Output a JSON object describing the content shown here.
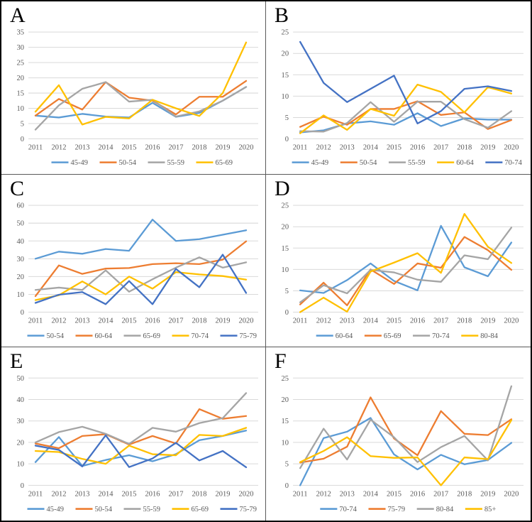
{
  "figure": {
    "panel_letters": [
      "A",
      "B",
      "C",
      "D",
      "E",
      "F"
    ]
  },
  "colors": {
    "series_blue": "#5B9BD5",
    "series_orange": "#ED7D31",
    "series_gray": "#A5A5A5",
    "series_yellow": "#FFC000",
    "series_darkblue": "#4472C4",
    "gridline": "#D9D9D9",
    "axis_text": "#595959",
    "panel_border": "#595959",
    "outer_border": "#000000"
  },
  "chart_data": [
    {
      "panel": "A",
      "type": "line",
      "x": [
        "2011",
        "2012",
        "2013",
        "2014",
        "2015",
        "2016",
        "2017",
        "2018",
        "2019",
        "2020"
      ],
      "ylim": [
        0,
        35
      ],
      "ystep": 5,
      "grid": true,
      "legend_position": "bottom",
      "series": [
        {
          "name": "45-49",
          "color": "#5B9BD5",
          "values": [
            7.6,
            7,
            8.2,
            7.3,
            7,
            11.8,
            7.2,
            8.5,
            12.5,
            17
          ]
        },
        {
          "name": "50-54",
          "color": "#ED7D31",
          "values": [
            7.6,
            13.1,
            9.6,
            18.6,
            13.5,
            12.5,
            8,
            13.8,
            13.8,
            19
          ]
        },
        {
          "name": "55-59",
          "color": "#A5A5A5",
          "values": [
            3,
            11,
            16.4,
            18.6,
            12.2,
            12.8,
            7.3,
            9,
            12.5,
            17
          ]
        },
        {
          "name": "65-69",
          "color": "#FFC000",
          "values": [
            8.9,
            17.6,
            4.7,
            7.2,
            6.7,
            12.8,
            10,
            7.5,
            15,
            31.6
          ]
        }
      ]
    },
    {
      "panel": "B",
      "type": "line",
      "x": [
        "2011",
        "2012",
        "2013",
        "2014",
        "2015",
        "2016",
        "2017",
        "2018",
        "2019",
        "2020"
      ],
      "ylim": [
        0,
        25
      ],
      "ystep": 5,
      "grid": true,
      "legend_position": "bottom",
      "series": [
        {
          "name": "45-49",
          "color": "#5B9BD5",
          "values": [
            1.5,
            2,
            3.6,
            4.1,
            3.3,
            6,
            3,
            4.8,
            4.5,
            4.5
          ]
        },
        {
          "name": "50-54",
          "color": "#ED7D31",
          "values": [
            2.8,
            5.2,
            3.3,
            7,
            7,
            8.8,
            5.6,
            6.2,
            2.3,
            4.4
          ]
        },
        {
          "name": "55-59",
          "color": "#A5A5A5",
          "values": [
            1.8,
            1.7,
            3.7,
            8.6,
            4,
            8.7,
            8.7,
            4.6,
            2.6,
            6.5
          ]
        },
        {
          "name": "60-64",
          "color": "#FFC000",
          "values": [
            1.3,
            5.5,
            2.1,
            7,
            5.4,
            12.7,
            11,
            6.2,
            12.1,
            10.6
          ]
        },
        {
          "name": "70-74",
          "color": "#4472C4",
          "values": [
            22.7,
            13.1,
            8.6,
            11.7,
            14.8,
            3.6,
            6.5,
            11.7,
            12.3,
            11.2
          ]
        }
      ]
    },
    {
      "panel": "C",
      "type": "line",
      "x": [
        "2011",
        "2012",
        "2013",
        "2014",
        "2015",
        "2016",
        "2017",
        "2018",
        "2019",
        "2020"
      ],
      "ylim": [
        0,
        60
      ],
      "ystep": 10,
      "grid": true,
      "legend_position": "bottom",
      "series": [
        {
          "name": "50-54",
          "color": "#5B9BD5",
          "values": [
            30,
            34,
            32.8,
            35.5,
            34.5,
            52,
            40,
            41,
            43.5,
            46
          ]
        },
        {
          "name": "60-64",
          "color": "#ED7D31",
          "values": [
            9,
            26.3,
            21.5,
            24.5,
            24.8,
            27,
            27.5,
            27,
            29.5,
            39.8
          ]
        },
        {
          "name": "65-69",
          "color": "#A5A5A5",
          "values": [
            12.5,
            13.8,
            12.5,
            23.5,
            11.5,
            18.5,
            25,
            30.8,
            25,
            28
          ]
        },
        {
          "name": "70-74",
          "color": "#FFC000",
          "values": [
            6.8,
            9.5,
            17.3,
            10,
            20,
            13.2,
            22.5,
            21.2,
            20.3,
            18.3
          ]
        },
        {
          "name": "75-79",
          "color": "#4472C4",
          "values": [
            5.2,
            9.8,
            11.3,
            4.5,
            17.5,
            4.5,
            24.3,
            14,
            32.3,
            10.8
          ]
        }
      ]
    },
    {
      "panel": "D",
      "type": "line",
      "x": [
        "2011",
        "2012",
        "2013",
        "2014",
        "2015",
        "2016",
        "2017",
        "2018",
        "2019",
        "2020"
      ],
      "ylim": [
        0,
        25
      ],
      "ystep": 5,
      "grid": true,
      "legend_position": "bottom",
      "series": [
        {
          "name": "60-64",
          "color": "#5B9BD5",
          "values": [
            5.1,
            4.5,
            7.5,
            11.4,
            7.3,
            5.1,
            20.2,
            10.5,
            8.4,
            16.3
          ]
        },
        {
          "name": "65-69",
          "color": "#ED7D31",
          "values": [
            1.8,
            6.9,
            1.6,
            10,
            6.6,
            11.4,
            10.4,
            17.6,
            14.5,
            9.9
          ]
        },
        {
          "name": "70-74",
          "color": "#A5A5A5",
          "values": [
            2.3,
            6.3,
            4.4,
            9.9,
            9.3,
            7.6,
            7.1,
            13.3,
            12.4,
            19.8
          ]
        },
        {
          "name": "80-84",
          "color": "#FFC000",
          "values": [
            0,
            3.4,
            0.1,
            9.5,
            11.6,
            13.8,
            9.2,
            23,
            15.3,
            11.5
          ]
        }
      ]
    },
    {
      "panel": "E",
      "type": "line",
      "x": [
        "2011",
        "2012",
        "2013",
        "2014",
        "2015",
        "2016",
        "2017",
        "2018",
        "2019",
        "2020"
      ],
      "ylim": [
        0,
        50
      ],
      "ystep": 10,
      "grid": true,
      "legend_position": "bottom",
      "series": [
        {
          "name": "45-49",
          "color": "#5B9BD5",
          "values": [
            10.8,
            22.5,
            9,
            11.8,
            14,
            11.2,
            14.5,
            21,
            23,
            25.5
          ]
        },
        {
          "name": "50-54",
          "color": "#ED7D31",
          "values": [
            19.5,
            17.3,
            23,
            23.8,
            19,
            23,
            19.5,
            35.5,
            31,
            32.3
          ]
        },
        {
          "name": "55-59",
          "color": "#A5A5A5",
          "values": [
            20,
            24.8,
            27.3,
            24,
            19.3,
            26.8,
            25,
            29,
            31.3,
            43
          ]
        },
        {
          "name": "65-69",
          "color": "#FFC000",
          "values": [
            16,
            15.5,
            12.3,
            10,
            18.5,
            14.5,
            14,
            23.5,
            23,
            26.8
          ]
        },
        {
          "name": "75-79",
          "color": "#4472C4",
          "values": [
            18.5,
            16.5,
            8.8,
            23.3,
            8.5,
            12.5,
            19.8,
            11.6,
            16,
            8.4
          ]
        }
      ]
    },
    {
      "panel": "F",
      "type": "line",
      "x": [
        "2011",
        "2012",
        "2013",
        "2014",
        "2015",
        "2016",
        "2017",
        "2018",
        "2019",
        "2020"
      ],
      "ylim": [
        0,
        25
      ],
      "ystep": 5,
      "grid": true,
      "legend_position": "bottom",
      "series": [
        {
          "name": "70-74",
          "color": "#5B9BD5",
          "values": [
            0,
            11,
            12.5,
            15.7,
            7.2,
            3.7,
            7.1,
            4.9,
            5.9,
            9.9
          ]
        },
        {
          "name": "75-79",
          "color": "#ED7D31",
          "values": [
            5.3,
            6.2,
            9,
            20.5,
            10.9,
            7,
            17.3,
            12,
            11.7,
            15.4
          ]
        },
        {
          "name": "80-84",
          "color": "#A5A5A5",
          "values": [
            4,
            13.2,
            6,
            15.3,
            11.2,
            5.4,
            8.9,
            11.5,
            5.8,
            23.1
          ]
        },
        {
          "name": "85+",
          "color": "#FFC000",
          "values": [
            5.4,
            8,
            11.2,
            6.8,
            6.4,
            6.5,
            0,
            6.5,
            6.1,
            15.2
          ]
        }
      ]
    }
  ]
}
